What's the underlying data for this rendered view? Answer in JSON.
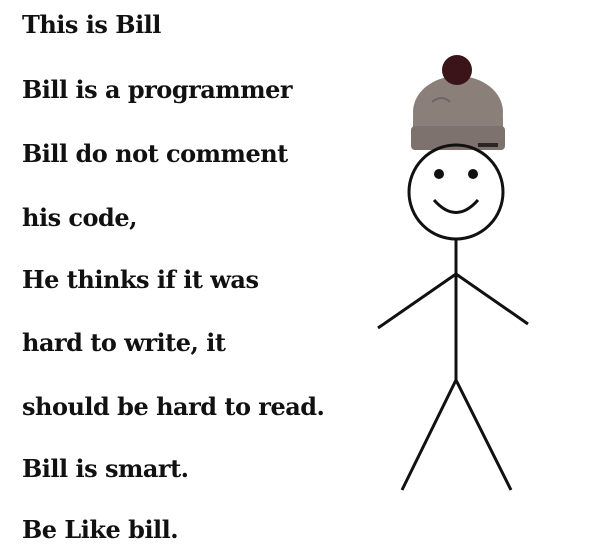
{
  "meme": {
    "lines": [
      "This is Bill",
      "Bill is a programmer",
      "Bill do not comment",
      "his code,",
      "He thinks if it was",
      "hard to write, it",
      "should be hard to read.",
      "Bill is smart.",
      "Be Like bill."
    ],
    "figure": {
      "hat": "beanie-hat-icon",
      "hat_color": "#8a7f79",
      "pompom_color": "#3a1418",
      "stroke_color": "#111111"
    }
  }
}
